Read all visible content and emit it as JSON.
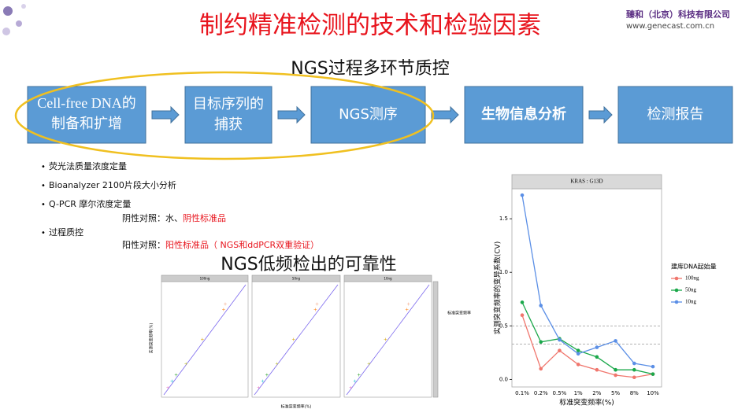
{
  "header": {
    "title": "制约精准检测的技术和检验因素",
    "company": "臻和（北京）科技有限公司",
    "website": "www.genecast.com.cn"
  },
  "flow": {
    "heading": "NGS过程多环节质控",
    "steps": [
      {
        "lines": [
          "Cell-free DNA的",
          "制备和扩增"
        ]
      },
      {
        "lines": [
          "目标序列的",
          "捕获"
        ]
      },
      {
        "lines": [
          "NGS测序"
        ]
      },
      {
        "lines": [
          "生物信息分析"
        ]
      },
      {
        "lines": [
          "检测报告"
        ]
      }
    ]
  },
  "bullets": [
    "荧光法质量浓度定量",
    "Bioanalyzer 2100片段大小分析",
    "Q-PCR 摩尔浓度定量",
    "过程质控"
  ],
  "notes": [
    {
      "parts": [
        "阴性对照：水、",
        "阴性标准品"
      ]
    },
    {
      "parts": [
        "阳性对照：",
        "阳性标准品（ NGS和ddPCR双重验证）"
      ]
    }
  ],
  "section_heading": "NGS低频检出的可靠性",
  "small_chart": {
    "panels": [
      "100ng",
      "50ng",
      "10ng"
    ],
    "x_label": "标准突变频率(%)",
    "y_label": "实测突变频率(%)",
    "legend_title": "标准突变频率"
  },
  "chart_data": {
    "type": "line",
    "title": "KRAS : G13D",
    "x_label": "标准突变频率(%)",
    "y_label": "实测突变频率的变异系数(CV)",
    "legend_title": "建库DNA起始量",
    "categories": [
      "0.1%",
      "0.2%",
      "0.5%",
      "1%",
      "2%",
      "5%",
      "8%",
      "10%"
    ],
    "series": [
      {
        "name": "100ng",
        "color": "#f0766d",
        "values": [
          0.6,
          0.1,
          0.27,
          0.14,
          0.09,
          0.04,
          0.02,
          0.05
        ]
      },
      {
        "name": "50ng",
        "color": "#1aa84a",
        "values": [
          0.72,
          0.35,
          0.38,
          0.27,
          0.21,
          0.09,
          0.09,
          0.05
        ]
      },
      {
        "name": "10ng",
        "color": "#5b8fe6",
        "values": [
          1.72,
          0.69,
          0.37,
          0.24,
          0.3,
          0.36,
          0.15,
          0.12
        ]
      }
    ],
    "reference_lines": [
      0.5,
      0.33
    ],
    "ylim": [
      -0.07,
      1.78
    ],
    "yticks": [
      {
        "value": 0,
        "label": "0.0"
      },
      0.5,
      {
        "value": 1,
        "label": "1.0"
      },
      1.5
    ],
    "grid": false
  }
}
